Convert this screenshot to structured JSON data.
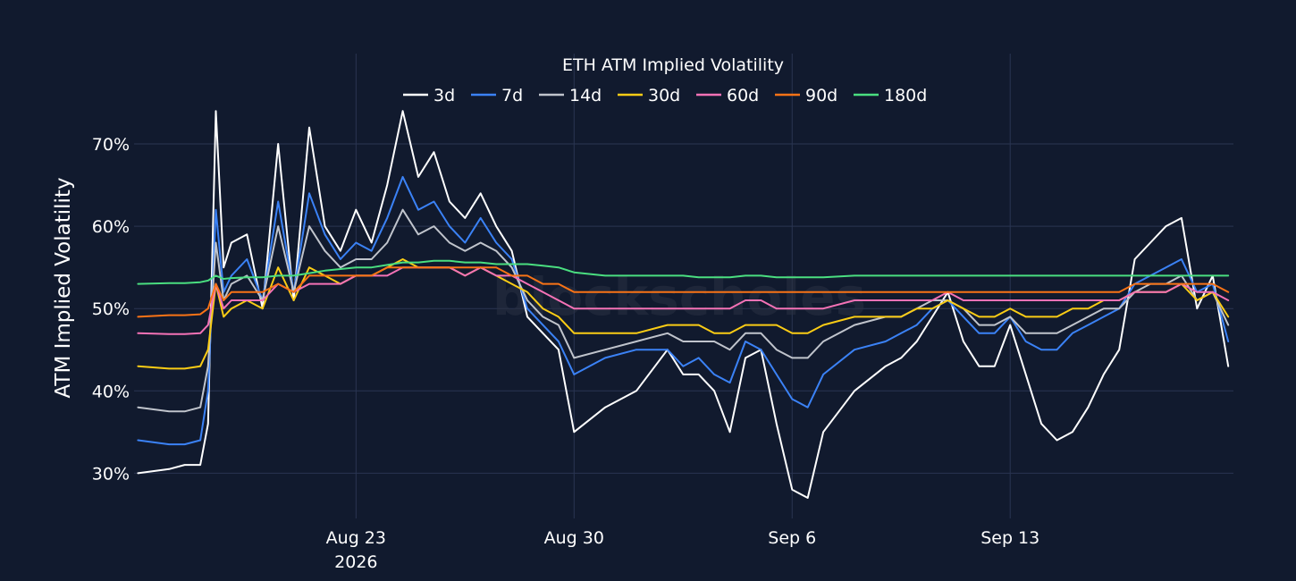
{
  "chart_data": {
    "type": "line",
    "title": "ETH ATM Implied Volatility",
    "ylabel": "ATM Implied Volatility",
    "xlabel": "",
    "ylim": [
      24.5,
      75
    ],
    "yticks": [
      30,
      40,
      50,
      60,
      70
    ],
    "ytick_labels": [
      "30%",
      "40%",
      "50%",
      "60%",
      "70%"
    ],
    "xlim": [
      "2026-08-15T21:00",
      "2026-09-20T04:00"
    ],
    "xticks": [
      "2026-08-23",
      "2026-08-30",
      "2026-09-06",
      "2026-09-13"
    ],
    "xtick_labels": [
      "Aug 23",
      "Aug 30",
      "Sep 6",
      "Sep 13"
    ],
    "xtick_sublabel": "2026",
    "legend_position": "top-center",
    "grid": true,
    "watermark": "blockscholes",
    "colors": {
      "background": "#111a2e",
      "grid": "#2a3552",
      "text": "#ffffff"
    },
    "x": [
      "2026-08-16T00:00",
      "2026-08-17T00:00",
      "2026-08-17T12:00",
      "2026-08-18T00:00",
      "2026-08-18T06:00",
      "2026-08-18T12:00",
      "2026-08-18T18:00",
      "2026-08-19T00:00",
      "2026-08-19T12:00",
      "2026-08-20T00:00",
      "2026-08-20T12:00",
      "2026-08-21T00:00",
      "2026-08-21T12:00",
      "2026-08-22T00:00",
      "2026-08-22T12:00",
      "2026-08-23T00:00",
      "2026-08-23T12:00",
      "2026-08-24T00:00",
      "2026-08-24T12:00",
      "2026-08-25T00:00",
      "2026-08-25T12:00",
      "2026-08-26T00:00",
      "2026-08-26T12:00",
      "2026-08-27T00:00",
      "2026-08-27T12:00",
      "2026-08-28T00:00",
      "2026-08-28T12:00",
      "2026-08-29T00:00",
      "2026-08-29T12:00",
      "2026-08-30T00:00",
      "2026-08-31T00:00",
      "2026-09-01T00:00",
      "2026-09-02T00:00",
      "2026-09-02T12:00",
      "2026-09-03T00:00",
      "2026-09-03T12:00",
      "2026-09-04T00:00",
      "2026-09-04T12:00",
      "2026-09-05T00:00",
      "2026-09-05T12:00",
      "2026-09-06T00:00",
      "2026-09-06T12:00",
      "2026-09-07T00:00",
      "2026-09-08T00:00",
      "2026-09-09T00:00",
      "2026-09-09T12:00",
      "2026-09-10T00:00",
      "2026-09-10T12:00",
      "2026-09-11T00:00",
      "2026-09-11T12:00",
      "2026-09-12T00:00",
      "2026-09-12T12:00",
      "2026-09-13T00:00",
      "2026-09-13T12:00",
      "2026-09-14T00:00",
      "2026-09-14T12:00",
      "2026-09-15T00:00",
      "2026-09-15T12:00",
      "2026-09-16T00:00",
      "2026-09-16T12:00",
      "2026-09-17T00:00",
      "2026-09-17T12:00",
      "2026-09-18T00:00",
      "2026-09-18T12:00",
      "2026-09-19T00:00",
      "2026-09-19T12:00",
      "2026-09-20T00:00"
    ],
    "series": [
      {
        "name": "3d",
        "color": "#ffffff",
        "values": [
          30,
          30.5,
          31,
          31,
          36,
          74,
          55,
          58,
          59,
          50,
          70,
          51,
          72,
          60,
          57,
          62,
          58,
          65,
          74,
          66,
          69,
          63,
          61,
          64,
          60,
          57,
          49,
          47,
          45,
          35,
          38,
          40,
          45,
          42,
          42,
          40,
          35,
          44,
          45,
          36,
          28,
          27,
          35,
          40,
          43,
          44,
          46,
          49,
          52,
          46,
          43,
          43,
          48,
          42,
          36,
          34,
          35,
          38,
          42,
          45,
          56,
          58,
          60,
          61,
          50,
          54,
          43
        ]
      },
      {
        "name": "7d",
        "color": "#3b82f6",
        "values": [
          34,
          33.5,
          33.5,
          34,
          40,
          62,
          52,
          54,
          56,
          51,
          63,
          52,
          64,
          59,
          56,
          58,
          57,
          61,
          66,
          62,
          63,
          60,
          58,
          61,
          58,
          56,
          50,
          48,
          46,
          42,
          44,
          45,
          45,
          43,
          44,
          42,
          41,
          46,
          45,
          42,
          39,
          38,
          42,
          45,
          46,
          47,
          48,
          50,
          51,
          49,
          47,
          47,
          49,
          46,
          45,
          45,
          47,
          48,
          49,
          50,
          53,
          54,
          55,
          56,
          52,
          53,
          46
        ]
      },
      {
        "name": "14d",
        "color": "#c0c4cc",
        "values": [
          38,
          37.5,
          37.5,
          38,
          43,
          58,
          51,
          53,
          54,
          51,
          60,
          52,
          60,
          57,
          55,
          56,
          56,
          58,
          62,
          59,
          60,
          58,
          57,
          58,
          57,
          55,
          51,
          49,
          48,
          44,
          45,
          46,
          47,
          46,
          46,
          46,
          45,
          47,
          47,
          45,
          44,
          44,
          46,
          48,
          49,
          49,
          50,
          51,
          51,
          50,
          48,
          48,
          49,
          47,
          47,
          47,
          48,
          49,
          50,
          50,
          52,
          53,
          53,
          54,
          51,
          52,
          48
        ]
      },
      {
        "name": "30d",
        "color": "#facc15",
        "values": [
          43,
          42.7,
          42.7,
          43,
          45,
          53,
          49,
          50,
          51,
          50,
          55,
          51,
          55,
          54,
          53,
          54,
          54,
          55,
          56,
          55,
          55,
          55,
          54,
          55,
          54,
          53,
          52,
          50,
          49,
          47,
          47,
          47,
          48,
          48,
          48,
          47,
          47,
          48,
          48,
          48,
          47,
          47,
          48,
          49,
          49,
          49,
          50,
          50,
          51,
          50,
          49,
          49,
          50,
          49,
          49,
          49,
          50,
          50,
          51,
          51,
          52,
          52,
          52,
          53,
          51,
          52,
          49
        ]
      },
      {
        "name": "60d",
        "color": "#f472b6",
        "values": [
          47,
          46.9,
          46.9,
          47,
          48,
          53,
          50,
          51,
          51,
          51,
          53,
          52,
          53,
          53,
          53,
          54,
          54,
          54,
          55,
          55,
          55,
          55,
          54,
          55,
          54,
          54,
          53,
          52,
          51,
          50,
          50,
          50,
          50,
          50,
          50,
          50,
          50,
          51,
          51,
          50,
          50,
          50,
          50,
          51,
          51,
          51,
          51,
          51,
          52,
          51,
          51,
          51,
          51,
          51,
          51,
          51,
          51,
          51,
          51,
          51,
          52,
          52,
          52,
          53,
          52,
          52,
          51
        ]
      },
      {
        "name": "90d",
        "color": "#f97316",
        "values": [
          49,
          49.2,
          49.2,
          49.3,
          50,
          53,
          51,
          52,
          52,
          52,
          53,
          52,
          54,
          54,
          54,
          54,
          54,
          55,
          55,
          55,
          55,
          55,
          55,
          55,
          55,
          54,
          54,
          53,
          53,
          52,
          52,
          52,
          52,
          52,
          52,
          52,
          52,
          52,
          52,
          52,
          52,
          52,
          52,
          52,
          52,
          52,
          52,
          52,
          52,
          52,
          52,
          52,
          52,
          52,
          52,
          52,
          52,
          52,
          52,
          52,
          53,
          53,
          53,
          53,
          53,
          53,
          52
        ]
      },
      {
        "name": "180d",
        "color": "#4ade80",
        "values": [
          53,
          53.1,
          53.1,
          53.2,
          53.4,
          54,
          53.6,
          53.7,
          53.8,
          53.8,
          54,
          54,
          54.3,
          54.6,
          54.8,
          55,
          55,
          55.3,
          55.6,
          55.6,
          55.8,
          55.8,
          55.6,
          55.6,
          55.4,
          55.4,
          55.4,
          55.2,
          55,
          54.4,
          54,
          54,
          54,
          54,
          53.8,
          53.8,
          53.8,
          54,
          54,
          53.8,
          53.8,
          53.8,
          53.8,
          54,
          54,
          54,
          54,
          54,
          54,
          54,
          54,
          54,
          54,
          54,
          54,
          54,
          54,
          54,
          54,
          54,
          54,
          54,
          54,
          54,
          54,
          54,
          54
        ]
      }
    ]
  }
}
